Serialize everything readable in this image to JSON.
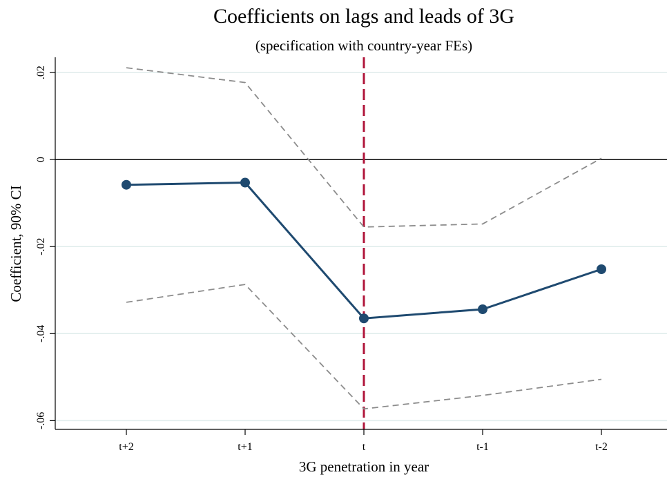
{
  "chart_data": {
    "type": "line",
    "title": "Coefficients on lags and leads of 3G",
    "subtitle": "(specification with country-year FEs)",
    "xlabel": "3G penetration in year",
    "ylabel": "Coefficient, 90% CI",
    "categories": [
      "t+2",
      "t+1",
      "t",
      "t-1",
      "t-2"
    ],
    "ylim": [
      -0.062,
      0.0235
    ],
    "yticks": [
      0.02,
      0,
      -0.02,
      -0.04,
      -0.06
    ],
    "ytick_labels": [
      ".02",
      "0",
      "-.02",
      "-.04",
      "-.06"
    ],
    "series": [
      {
        "role": "coefficient",
        "values": [
          -0.0058,
          -0.0053,
          -0.0365,
          -0.0344,
          -0.0252
        ]
      },
      {
        "role": "ci_upper",
        "values": [
          0.0211,
          0.0177,
          -0.0155,
          -0.0148,
          0.0003
        ]
      },
      {
        "role": "ci_lower",
        "values": [
          -0.0328,
          -0.0287,
          -0.0573,
          -0.0542,
          -0.0505
        ]
      }
    ],
    "reference_line_y": 0,
    "vertical_marker_category": "t",
    "grid": "horizontal",
    "colors": {
      "coefficient": "#1f4a70",
      "ci": "#8c8c8c",
      "vertical_marker": "#b0153a",
      "grid": "#dfeceb",
      "zero_line": "#000000"
    }
  }
}
